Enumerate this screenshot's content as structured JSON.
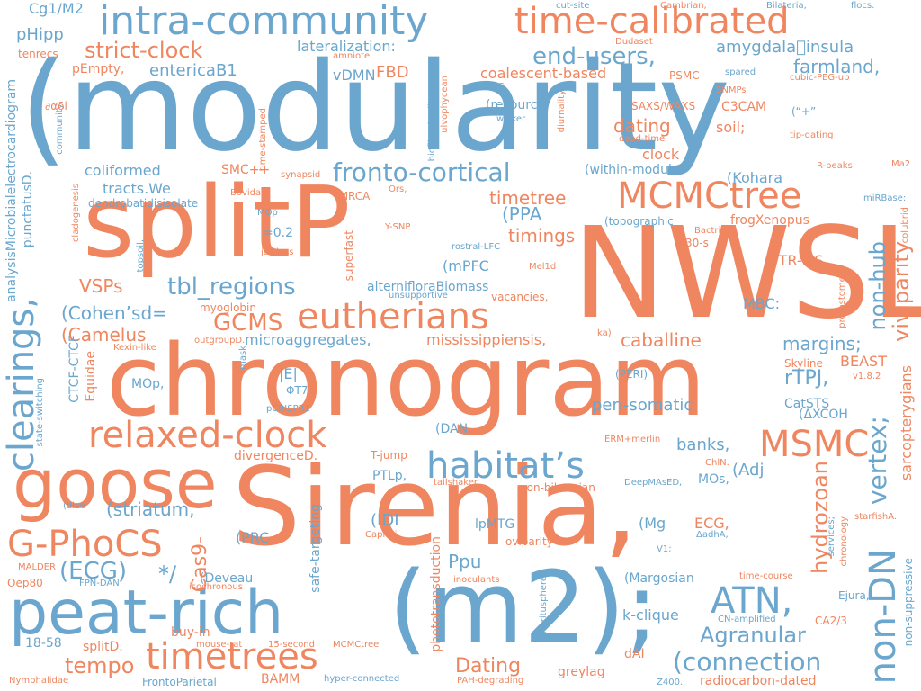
{
  "palette": {
    "blue": "#6aa6cd",
    "orange": "#ef8660",
    "background": "#ffffff"
  },
  "words": [
    "(modularity",
    "splitP",
    "NWSL",
    "chronogram",
    "Sirenia,",
    "goose",
    "(m2);",
    "peat-rich",
    "intra-community",
    "time-calibrated",
    "habitat’s",
    "MCMCtree",
    "relaxed-clock",
    "eutherians",
    "clearings,",
    "MSMC",
    "G-PhoCS",
    "timetrees",
    "non-DN",
    "ATN,",
    "vertex;",
    "fronto-cortical",
    "(connection",
    "strict-clock",
    "end-users,",
    "amygdala\u0000insula",
    "farmland,",
    "coalescent-based",
    "tbl_regions",
    "GCMS",
    "timetree",
    "timings",
    "viviparity",
    "hydrozoan",
    "non-hub",
    "Agranular",
    "tempo",
    "Dating",
    "(ECG)",
    "peri-somatic",
    "*/",
    "Cas9-",
    "Ppu",
    "(striatum,",
    "habitat",
    "rTPJ,",
    "k-clique",
    "(PPA",
    "(Cohen’sd=",
    "(Camelus",
    "VSPs",
    "microaggregates,",
    "mississippiensis,",
    "caballine",
    "margins;",
    "BEAST",
    "Cg1/M2",
    "pHipp",
    "tenrecs",
    "pEmpty,",
    "entericaB1",
    "lateralization:",
    "vDMN",
    "FBD",
    "PSMC",
    "C3CAM",
    "SAXS/WAXS",
    "dating",
    "soil;",
    "clock",
    "(“+”",
    "(within-module",
    "coliformed",
    "tracts.We",
    "dendrobatidisisolate",
    "(Kohara",
    "frogXenopus",
    "(topographic",
    "alternifloraBiomass",
    "superfast",
    "unsupportive",
    "vacancies,",
    "(mPFC",
    "MBC:",
    "PTR-MS",
    "ΦT7",
    "|E|",
    "MOp,",
    "banks,",
    "(Adj",
    "MOs,",
    "(DAN,",
    "divergenceD.",
    "T-jump",
    "PTLp,",
    "(IDI",
    "lpMTG",
    "(PRC",
    "(Mg",
    "ECG,",
    "oviparity",
    "(Deveau",
    "(Margosian",
    "dAI",
    "greylag",
    "CA2/3",
    "radiocarbon-dated",
    "FrontoParietal",
    "BAMM",
    "18-58",
    "splitD.",
    "buy-in",
    "Oep80",
    "MALDER",
    "FPN-DAN",
    "isochronous",
    "inoculants",
    "detritusphere",
    "hyper-connected",
    "PAH-degrading",
    "Nymphalidae",
    "safe-targeting",
    "phototransduction",
    "sarcopterygians",
    "(ΔXCOH",
    "CatSTS",
    "Skyline",
    "mouse-rat",
    "15-second",
    "MCMCtree",
    "CN-amplified",
    "time-course",
    "Ejura,",
    "starfishA.",
    "non-suppressive",
    "services;",
    "chronology",
    "ΔadhA,",
    "V1;",
    "DeepMAsED,",
    "ChlN.",
    "ERM+merlin",
    "tailshaker",
    "non-bilaterian",
    "Caprini",
    "=0.2",
    "MOp",
    "jawless",
    "Y-SNP",
    "rostral-LFC",
    "Bactrian",
    "30-s",
    "Mel1d",
    "spared",
    "SNMPs",
    "cubic-PEG-ub",
    "R-peaks",
    "IMa2",
    "miRBase:",
    "colubrid",
    "protostomes",
    "tip-dating",
    "v1.8.2",
    "analysisMicrobialelectrocardiogram",
    "punctatusD.",
    "CTCF-CTCF",
    "Equidae",
    "state-switching",
    "cladogenesis",
    "community;",
    "∂αδi",
    "topsoil,",
    "Bovidae",
    "synapsid",
    "tMRCA",
    "Ors,",
    "wicker",
    "(resource",
    "(mPFC,",
    "ulvophycean",
    "biofilm-dwelling",
    "time-stamped",
    "amniote",
    "Dudaset",
    "cut-site",
    "Cambrian,",
    "Bilateria,",
    "flocs.",
    "myoglobin",
    "outgroupD.",
    "Kexin-like",
    "(mask",
    "pCRISPR1",
    "(PERI)",
    "ka)",
    "(dice",
    "SMC++",
    "dead-time",
    "diurnality",
    "Z400."
  ]
}
